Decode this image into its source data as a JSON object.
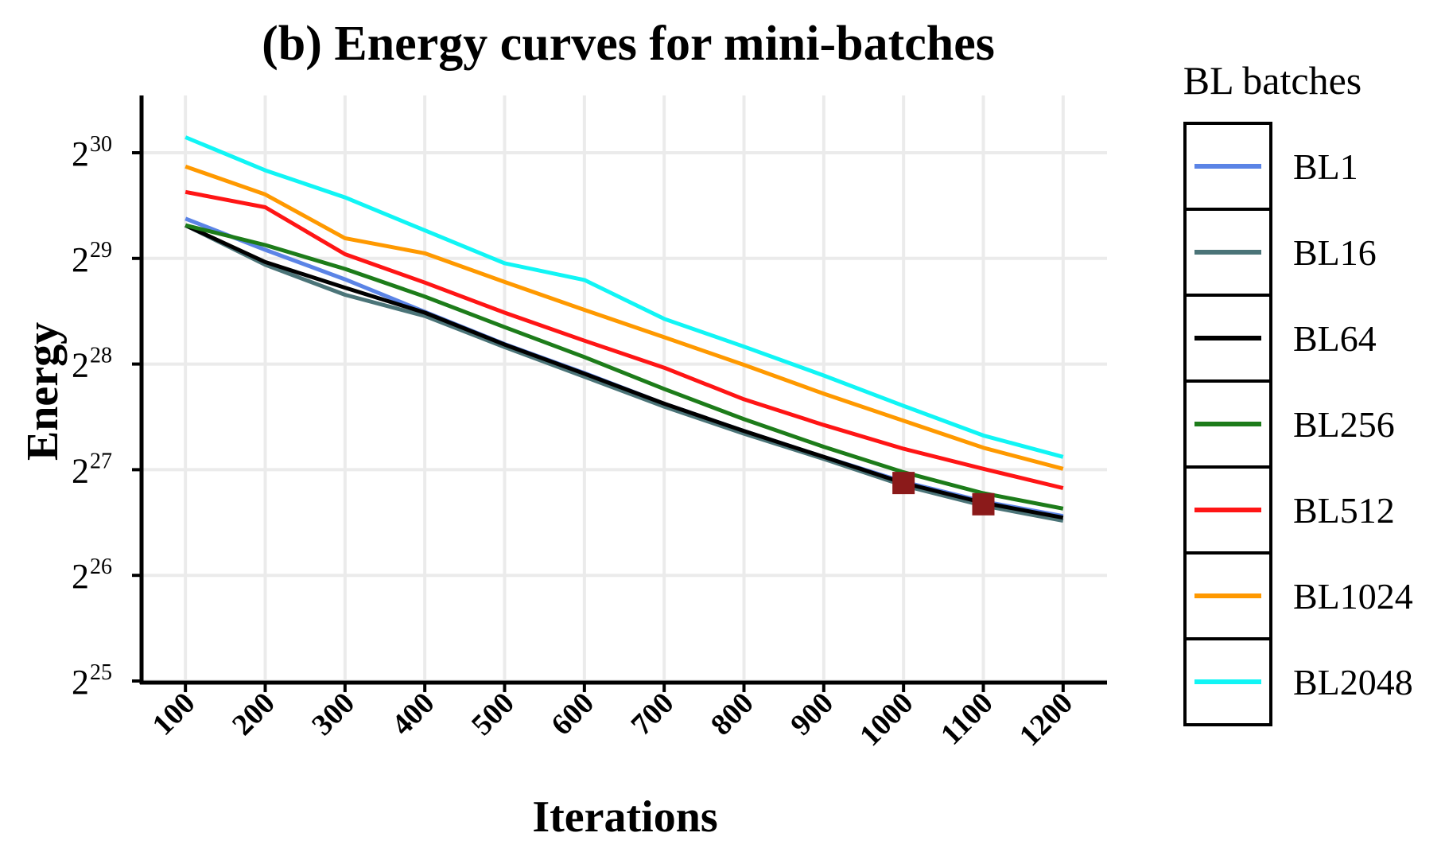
{
  "chart_data": {
    "type": "line",
    "title": "(b) Energy curves for mini-batches",
    "xlabel": "Iterations",
    "ylabel": "Energy",
    "x": [
      100,
      200,
      300,
      400,
      500,
      600,
      700,
      800,
      900,
      1000,
      1100,
      1200
    ],
    "xlim": [
      45,
      1255
    ],
    "y_scale": "log2",
    "yticks": [
      {
        "base": "2",
        "exp": "25",
        "value": 33554432
      },
      {
        "base": "2",
        "exp": "26",
        "value": 67108864
      },
      {
        "base": "2",
        "exp": "27",
        "value": 134217728
      },
      {
        "base": "2",
        "exp": "28",
        "value": 268435456
      },
      {
        "base": "2",
        "exp": "29",
        "value": 536870912
      },
      {
        "base": "2",
        "exp": "30",
        "value": 1073741824
      }
    ],
    "grid": true,
    "legend": {
      "title": "BL batches",
      "position": "right"
    },
    "series": [
      {
        "name": "BL1",
        "color": "#5b84e6",
        "values": [
          697000000,
          568000000,
          468000000,
          378000000,
          306000000,
          253000000,
          207000000,
          173000000,
          146000000,
          124000000,
          109000000,
          99000000
        ]
      },
      {
        "name": "BL16",
        "color": "#4b7478",
        "values": [
          667000000,
          515000000,
          423000000,
          368000000,
          300000000,
          247000000,
          203000000,
          170000000,
          144000000,
          121000000,
          106000000,
          96000000
        ]
      },
      {
        "name": "BL64",
        "color": "#000000",
        "values": [
          667000000,
          524000000,
          443000000,
          376000000,
          305000000,
          252000000,
          207000000,
          173000000,
          146000000,
          123000000,
          108000000,
          98000000
        ]
      },
      {
        "name": "BL256",
        "color": "#1d7c1a",
        "values": [
          667000000,
          586000000,
          501000000,
          418000000,
          342000000,
          281000000,
          228000000,
          187000000,
          156000000,
          132000000,
          115000000,
          104000000
        ]
      },
      {
        "name": "BL512",
        "color": "#ff1515",
        "values": [
          830000000,
          751000000,
          552000000,
          458000000,
          376000000,
          313000000,
          262000000,
          213000000,
          180000000,
          154000000,
          135000000,
          119000000
        ]
      },
      {
        "name": "BL1024",
        "color": "#ff9900",
        "values": [
          981000000,
          817000000,
          613000000,
          555000000,
          460000000,
          383000000,
          320000000,
          267000000,
          221000000,
          185000000,
          155000000,
          135000000
        ]
      },
      {
        "name": "BL2048",
        "color": "#11f5f5",
        "values": [
          1189000000,
          957000000,
          801000000,
          645000000,
          520000000,
          466000000,
          361000000,
          301000000,
          249000000,
          204000000,
          168000000,
          146000000
        ]
      }
    ],
    "markers": [
      {
        "x": 1000,
        "y": 123000000,
        "color": "#8b1a1a"
      },
      {
        "x": 1100,
        "y": 107000000,
        "color": "#8b1a1a"
      }
    ]
  }
}
